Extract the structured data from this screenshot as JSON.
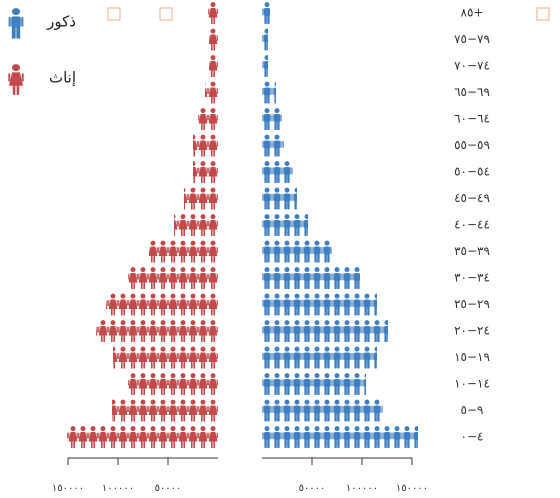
{
  "chart_data": {
    "type": "pictograph",
    "categories": [
      "٨٥+",
      "٧٩−٧٥",
      "٧٤−٧٠",
      "٦٩−٦٥",
      "٦٤−٦٠",
      "٥٩−٥٥",
      "٥٤−٥٠",
      "٤٩−٤٥",
      "٤٤−٤٠",
      "٣٩−٣٥",
      "٣٤−٣٠",
      "٢٩−٢٥",
      "٢٤−٢٠",
      "١٩−١٥",
      "١٤−١٠",
      "٩−٥",
      "٤−٠"
    ],
    "series": [
      {
        "name": "ذكور",
        "color": "#3f7fc1",
        "values": [
          8000,
          6000,
          6000,
          14000,
          20000,
          22000,
          31000,
          35000,
          46000,
          70000,
          98000,
          115000,
          126000,
          115000,
          104000,
          121000,
          156000
        ]
      },
      {
        "name": "إناث",
        "color": "#c24a4a",
        "values": [
          10000,
          9000,
          9000,
          13000,
          20000,
          25000,
          25000,
          34000,
          44000,
          69000,
          90000,
          112000,
          122000,
          105000,
          90000,
          106000,
          151000
        ]
      }
    ],
    "xlim": [
      0,
      150000
    ],
    "xticks": [
      {
        "value": 50000,
        "label": "٥٠٠٠٠"
      },
      {
        "value": 100000,
        "label": "١٠٠٠٠٠"
      },
      {
        "value": 150000,
        "label": "١٥٠٠٠٠"
      }
    ]
  }
}
